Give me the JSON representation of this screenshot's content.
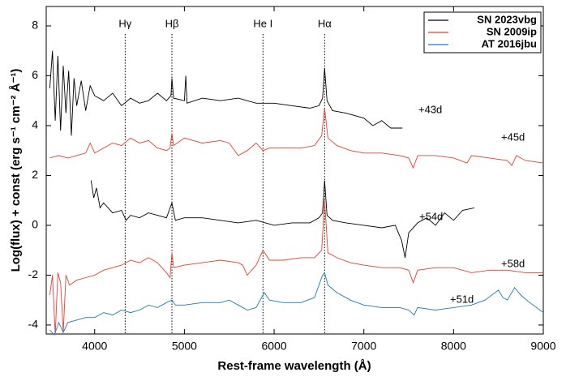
{
  "chart_data": {
    "type": "line",
    "xlabel": "Rest-frame wavelength (Å)",
    "ylabel": "Log(flux) + const (erg s⁻¹ cm⁻² Å⁻¹)",
    "xlim": [
      3460,
      9000
    ],
    "ylim": [
      -4.36,
      8.78
    ],
    "xticks": [
      4000,
      5000,
      6000,
      7000,
      8000,
      9000
    ],
    "yticks": [
      -4,
      -2,
      0,
      2,
      4,
      6,
      8
    ],
    "legend": "upper right",
    "lines": [
      {
        "label": "Hγ",
        "x": 4340
      },
      {
        "label": "Hβ",
        "x": 4861
      },
      {
        "label": "He I",
        "x": 5876
      },
      {
        "label": "Hα",
        "x": 6563
      }
    ],
    "series": [
      {
        "name": "SN 2023vbg",
        "color": "#000000",
        "spectra": [
          {
            "label": "+43d",
            "x": [
              3500,
              3530,
              3560,
              3590,
              3620,
              3650,
              3680,
              3710,
              3740,
              3770,
              3800,
              3850,
              3900,
              3950,
              4000,
              4100,
              4200,
              4300,
              4400,
              4500,
              4600,
              4700,
              4800,
              4850,
              4861,
              4880,
              5000,
              5015,
              5030,
              5200,
              5400,
              5600,
              5800,
              6000,
              6200,
              6400,
              6500,
              6540,
              6563,
              6590,
              6650,
              6800,
              7000,
              7100,
              7200,
              7300,
              7430
            ],
            "values": [
              5.5,
              7.0,
              4.2,
              6.8,
              3.8,
              6.4,
              4.5,
              6.2,
              3.6,
              5.9,
              4.8,
              5.8,
              4.6,
              5.6,
              5.2,
              5.0,
              5.3,
              4.8,
              5.1,
              4.9,
              5.0,
              5.3,
              5.0,
              5.2,
              5.9,
              5.1,
              5.0,
              6.0,
              4.9,
              5.1,
              5.0,
              5.1,
              4.9,
              4.9,
              4.8,
              4.7,
              4.8,
              5.1,
              6.3,
              5.0,
              4.6,
              4.5,
              4.3,
              4.0,
              4.2,
              3.9,
              3.9
            ]
          },
          {
            "label": "+54d",
            "x": [
              3960,
              3990,
              4020,
              4060,
              4100,
              4200,
              4300,
              4350,
              4400,
              4500,
              4600,
              4700,
              4800,
              4861,
              4900,
              5000,
              5200,
              5400,
              5600,
              5800,
              6000,
              6200,
              6400,
              6500,
              6540,
              6563,
              6590,
              6650,
              6800,
              7000,
              7200,
              7350,
              7420,
              7460,
              7500,
              7600,
              7700,
              7800,
              7900,
              8000,
              8100,
              8230
            ],
            "values": [
              1.8,
              1.1,
              1.5,
              0.7,
              0.9,
              0.5,
              0.6,
              0.2,
              0.4,
              0.3,
              0.5,
              0.4,
              0.3,
              0.9,
              0.2,
              0.3,
              0.3,
              0.2,
              0.1,
              0.2,
              0.0,
              0.1,
              0.1,
              0.3,
              0.5,
              1.8,
              0.4,
              0.2,
              0.1,
              0.0,
              -0.1,
              0.0,
              -0.6,
              -1.3,
              -0.3,
              0.1,
              0.3,
              0.0,
              0.5,
              0.2,
              0.6,
              0.7
            ]
          }
        ]
      },
      {
        "name": "SN 2009ip",
        "color": "#e8412f",
        "spectra": [
          {
            "label": "+45d",
            "x": [
              3500,
              3600,
              3700,
              3800,
              3900,
              3950,
              4000,
              4100,
              4200,
              4300,
              4400,
              4500,
              4600,
              4700,
              4800,
              4840,
              4861,
              4880,
              5000,
              5200,
              5400,
              5500,
              5600,
              5700,
              5800,
              5876,
              5950,
              6100,
              6300,
              6450,
              6530,
              6563,
              6600,
              6700,
              6850,
              7000,
              7200,
              7400,
              7500,
              7550,
              7600,
              7800,
              8000,
              8150,
              8200,
              8400,
              8600,
              8650,
              8700,
              8800,
              9000
            ],
            "values": [
              2.7,
              2.8,
              2.7,
              2.8,
              2.9,
              3.3,
              2.9,
              3.1,
              3.3,
              3.2,
              3.5,
              3.3,
              3.4,
              3.1,
              3.0,
              3.1,
              3.7,
              3.2,
              3.5,
              3.3,
              3.4,
              3.3,
              2.8,
              3.0,
              3.3,
              3.0,
              3.1,
              3.1,
              3.1,
              3.2,
              3.6,
              4.7,
              3.5,
              3.2,
              3.0,
              2.9,
              2.9,
              2.8,
              2.7,
              2.3,
              2.8,
              2.8,
              2.7,
              2.5,
              2.8,
              2.7,
              2.6,
              2.4,
              2.8,
              2.6,
              2.5
            ]
          },
          {
            "label": "+58d",
            "x": [
              3500,
              3530,
              3560,
              3590,
              3620,
              3650,
              3680,
              3720,
              3800,
              3900,
              4000,
              4100,
              4200,
              4300,
              4400,
              4500,
              4600,
              4700,
              4800,
              4840,
              4861,
              4880,
              5000,
              5200,
              5400,
              5600,
              5650,
              5700,
              5800,
              5876,
              5950,
              6100,
              6300,
              6450,
              6530,
              6563,
              6600,
              6700,
              6850,
              7000,
              7200,
              7400,
              7500,
              7550,
              7600,
              7800,
              8000,
              8200,
              8400,
              8600,
              8800,
              9000
            ],
            "values": [
              -2.8,
              -2.0,
              -4.4,
              -1.9,
              -2.3,
              -4.3,
              -2.0,
              -2.4,
              -2.2,
              -2.1,
              -2.0,
              -1.8,
              -1.7,
              -1.6,
              -1.4,
              -1.5,
              -1.3,
              -1.5,
              -1.9,
              -2.1,
              -1.1,
              -1.7,
              -1.6,
              -1.5,
              -1.4,
              -1.5,
              -1.6,
              -2.0,
              -1.6,
              -1.0,
              -1.4,
              -1.4,
              -1.3,
              -1.3,
              -1.0,
              1.0,
              -1.1,
              -1.3,
              -1.5,
              -1.6,
              -1.7,
              -1.7,
              -1.8,
              -2.3,
              -1.8,
              -1.7,
              -1.7,
              -1.9,
              -1.8,
              -1.8,
              -1.9,
              -1.9
            ]
          }
        ]
      },
      {
        "name": "AT 2016jbu",
        "color": "#1f7bb4",
        "spectra": [
          {
            "label": "+51d",
            "x": [
              3500,
              3550,
              3600,
              3650,
              3700,
              3800,
              3900,
              4000,
              4100,
              4200,
              4300,
              4400,
              4500,
              4600,
              4700,
              4800,
              4861,
              4900,
              5000,
              5200,
              5400,
              5500,
              5600,
              5700,
              5800,
              5890,
              5950,
              6100,
              6300,
              6450,
              6540,
              6563,
              6600,
              6700,
              6850,
              7000,
              7200,
              7400,
              7500,
              7560,
              7600,
              7800,
              8000,
              8200,
              8350,
              8500,
              8550,
              8600,
              8680,
              8750,
              8850,
              9000
            ],
            "values": [
              -4.2,
              -4.4,
              -3.9,
              -4.3,
              -3.9,
              -3.8,
              -3.7,
              -3.7,
              -3.5,
              -3.6,
              -3.4,
              -3.5,
              -3.4,
              -3.2,
              -3.3,
              -3.1,
              -3.0,
              -3.2,
              -3.2,
              -3.1,
              -3.1,
              -3.0,
              -3.2,
              -3.4,
              -3.3,
              -2.7,
              -3.0,
              -3.1,
              -3.1,
              -2.9,
              -2.0,
              -1.9,
              -2.4,
              -2.7,
              -3.0,
              -3.2,
              -3.3,
              -3.3,
              -3.4,
              -3.6,
              -3.3,
              -3.4,
              -3.3,
              -3.2,
              -3.0,
              -2.6,
              -2.9,
              -3.0,
              -2.5,
              -2.8,
              -3.1,
              -3.5
            ]
          }
        ]
      }
    ]
  }
}
